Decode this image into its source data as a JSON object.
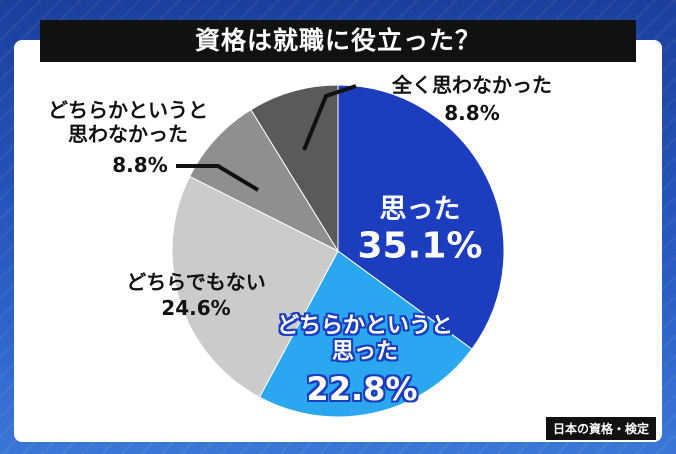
{
  "chart_data": {
    "type": "pie",
    "title": "資格は就職に役立った？",
    "source": "日本の資格・検定",
    "categories": [
      "思った",
      "どちらかというと\n思った",
      "どちらでもない",
      "どちらかというと\n思わなかった",
      "全く思わなかった"
    ],
    "values": [
      35.1,
      22.8,
      24.6,
      8.8,
      8.8
    ],
    "value_labels": [
      "35.1%",
      "22.8%",
      "24.6%",
      "8.8%",
      "8.8%"
    ],
    "colors": [
      "#1c3dbd",
      "#2aa7ef",
      "#cbcbcb",
      "#8f8f8f",
      "#5a5a5a"
    ]
  }
}
